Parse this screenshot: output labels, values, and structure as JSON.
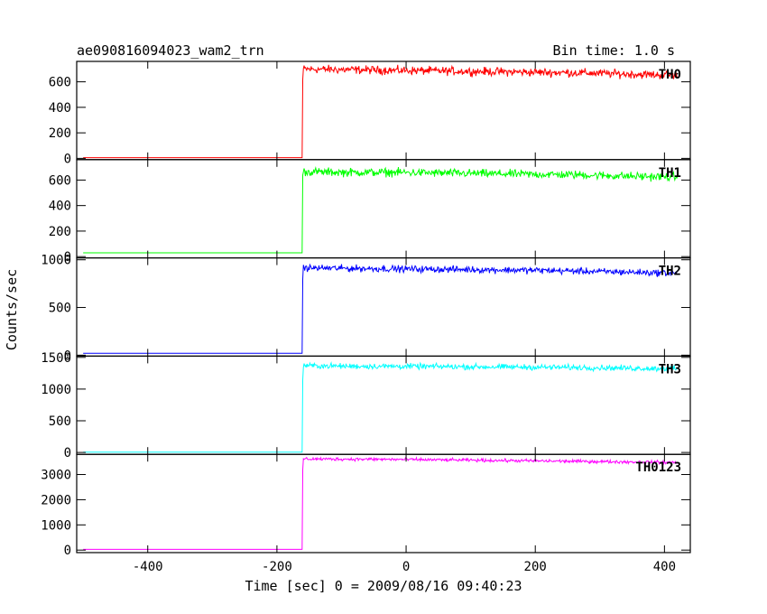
{
  "chart_data": {
    "type": "line",
    "title": "ae090816094023_wam2_trn",
    "subtitle": "Bin time: 1.0 s",
    "xlabel": "Time [sec] 0 = 2009/08/16 09:40:23",
    "ylabel": "Counts/sec",
    "xlim": [
      -510,
      440
    ],
    "xticks": [
      -400,
      -200,
      0,
      200,
      400
    ],
    "grid": false,
    "shared_x": true,
    "x_start": -500,
    "x_end": 420,
    "bin_time_s": 1.0,
    "step_time": -160,
    "series": [
      {
        "name": "TH0",
        "color": "#ff0000",
        "ylim": [
          -10,
          760
        ],
        "yticks": [
          0,
          200,
          400,
          600
        ],
        "pre_level": 5,
        "initial_peak": 620,
        "post_level": [
          700,
          695,
          690,
          685,
          680,
          675,
          670,
          660,
          650
        ],
        "noise": 28
      },
      {
        "name": "TH1",
        "color": "#00ff00",
        "ylim": [
          -10,
          760
        ],
        "yticks": [
          0,
          200,
          400,
          600
        ],
        "pre_level": 30,
        "initial_peak": 640,
        "post_level": [
          665,
          660,
          660,
          655,
          650,
          645,
          640,
          630,
          625
        ],
        "noise": 28
      },
      {
        "name": "TH2",
        "color": "#0000ff",
        "ylim": [
          -10,
          1020
        ],
        "yticks": [
          0,
          500,
          1000
        ],
        "pre_level": 20,
        "initial_peak": 800,
        "post_level": [
          915,
          910,
          905,
          900,
          895,
          890,
          880,
          870,
          860
        ],
        "noise": 30
      },
      {
        "name": "TH3",
        "color": "#00ffff",
        "ylim": [
          -30,
          1520
        ],
        "yticks": [
          0,
          500,
          1000,
          1500
        ],
        "pre_level": 5,
        "initial_peak": 1150,
        "post_level": [
          1370,
          1360,
          1360,
          1355,
          1350,
          1345,
          1340,
          1330,
          1320
        ],
        "noise": 38
      },
      {
        "name": "TH0123",
        "color": "#ff00ff",
        "ylim": [
          -100,
          3800
        ],
        "yticks": [
          0,
          1000,
          2000,
          3000
        ],
        "pre_level": 30,
        "initial_peak": 3200,
        "post_level": [
          3620,
          3610,
          3600,
          3580,
          3560,
          3540,
          3520,
          3500,
          3480
        ],
        "noise": 55
      }
    ]
  }
}
